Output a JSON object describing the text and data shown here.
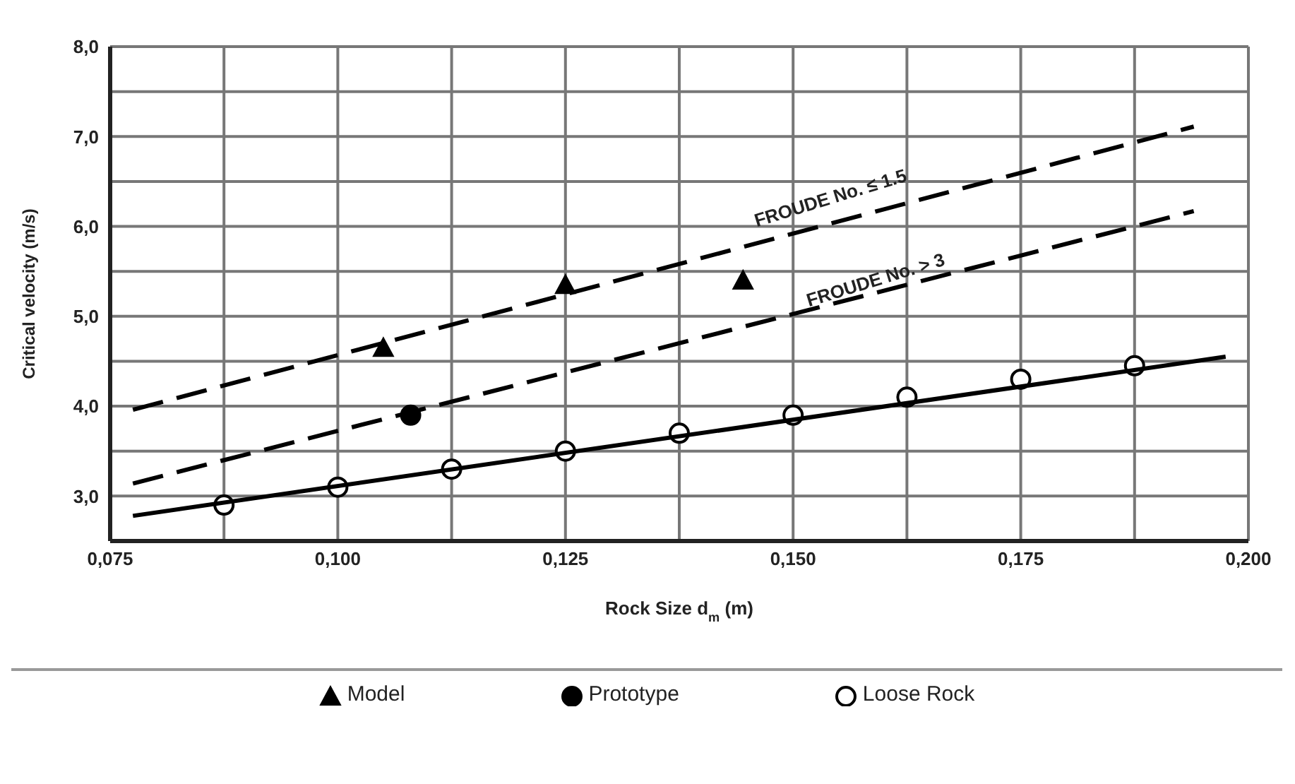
{
  "chart_data": {
    "type": "scatter",
    "xlabel": "Rock Size d$_{m}$ (m)",
    "ylabel": "Critical velocity (m/s)",
    "xlim": [
      0.075,
      0.2
    ],
    "ylim": [
      2.5,
      8.0
    ],
    "xticks": [
      {
        "value": 0.075,
        "label": "0,075"
      },
      {
        "value": 0.0875,
        "label": null
      },
      {
        "value": 0.1,
        "label": "0,100"
      },
      {
        "value": 0.1125,
        "label": null
      },
      {
        "value": 0.125,
        "label": "0,125"
      },
      {
        "value": 0.1375,
        "label": null
      },
      {
        "value": 0.15,
        "label": "0,150"
      },
      {
        "value": 0.1625,
        "label": null
      },
      {
        "value": 0.175,
        "label": "0,175"
      },
      {
        "value": 0.1875,
        "label": null
      },
      {
        "value": 0.2,
        "label": "0,200"
      }
    ],
    "yticks": [
      {
        "value": 2.5,
        "label": null
      },
      {
        "value": 3.0,
        "label": "3,0"
      },
      {
        "value": 3.5,
        "label": null
      },
      {
        "value": 4.0,
        "label": "4,0"
      },
      {
        "value": 4.5,
        "label": null
      },
      {
        "value": 5.0,
        "label": "5,0"
      },
      {
        "value": 5.5,
        "label": null
      },
      {
        "value": 6.0,
        "label": "6,0"
      },
      {
        "value": 6.5,
        "label": null
      },
      {
        "value": 7.0,
        "label": "7,0"
      },
      {
        "value": 7.5,
        "label": null
      },
      {
        "value": 8.0,
        "label": "8,0"
      }
    ],
    "grid": true,
    "legend": "bottom",
    "series": [
      {
        "name": "Model",
        "marker": "triangle",
        "color": "#000000",
        "x": [
          0.105,
          0.125,
          0.1445
        ],
        "values": [
          4.65,
          5.35,
          5.4
        ]
      },
      {
        "name": "Prototype",
        "marker": "circle",
        "color": "#000000",
        "x": [
          0.108
        ],
        "values": [
          3.9
        ]
      },
      {
        "name": "Loose Rock",
        "marker": "circle",
        "color": "#ffffff",
        "x": [
          0.0875,
          0.1,
          0.1125,
          0.125,
          0.1375,
          0.15,
          0.1625,
          0.175,
          0.1875
        ],
        "values": [
          2.9,
          3.1,
          3.3,
          3.5,
          3.7,
          3.9,
          4.1,
          4.3,
          4.45
        ]
      },
      {
        "type": "line",
        "marker": "none",
        "line_style": "dashed",
        "color": "#000000",
        "x": [
          0.0775,
          0.194
        ],
        "values": [
          3.96,
          7.11
        ]
      },
      {
        "type": "line",
        "marker": "none",
        "line_style": "dashed",
        "color": "#000000",
        "x": [
          0.0775,
          0.194
        ],
        "values": [
          3.14,
          6.17
        ]
      },
      {
        "type": "line",
        "marker": "none",
        "line_style": "solid",
        "color": "#000000",
        "x": [
          0.0775,
          0.1975
        ],
        "values": [
          2.78,
          4.55
        ]
      }
    ],
    "annotations": [
      "FROUDE No. ≤ 1.5",
      "FROUDE No. > 3"
    ]
  }
}
